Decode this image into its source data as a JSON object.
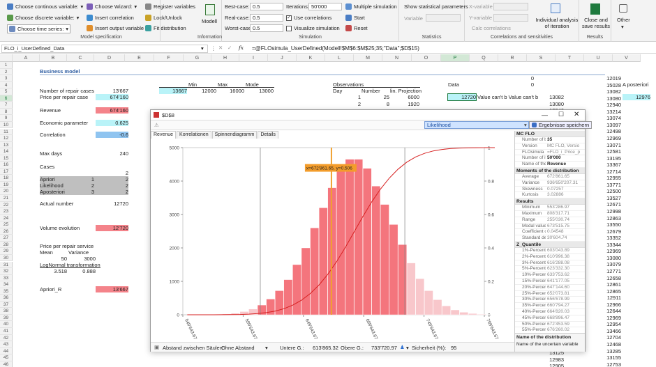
{
  "ribbon": {
    "model_spec": {
      "continuous": "Choose continous variable:",
      "discrete": "Choose discrete variable:",
      "time_series": "Choose time series:",
      "wizard": "Choose Wizard:",
      "insert_corr": "Insert correlation",
      "insert_output": "Insert output variable",
      "register": "Register variables",
      "lock": "Lock/Unlock",
      "fit": "Fit distribution",
      "label": "Model specification"
    },
    "information": {
      "model": "Modell",
      "label": "Information"
    },
    "simulation": {
      "best_case": "Best-case:",
      "best_val": "0.5",
      "real_case": "Real-case:",
      "real_val": "0.5",
      "worst_case": "Worst-case:",
      "worst_val": "0.5",
      "iterations": "Iterations:",
      "iter_val": "50'000",
      "use_corr": "Use correlations",
      "visualize": "Visualize simulation",
      "multiple": "Multiple simulation",
      "start": "Start",
      "reset": "Reset",
      "label": "Simulation"
    },
    "statistics": {
      "show_params": "Show statistical parameters",
      "variable": "Variable",
      "label": "Statistics"
    },
    "corr_sens": {
      "x_var": "X-variable",
      "y_var": "Y-variable",
      "calc": "Calc correlations",
      "individual": "Individual analysis of iteration",
      "label": "Correlations and sensitivities"
    },
    "results": {
      "close_save": "Close and save results",
      "label": "Results"
    },
    "other": {
      "label": "Other"
    }
  },
  "formula": {
    "name_box": "FLO_i_UserDefined_Data",
    "formula": "=@FLOsimula_UserDefined(Modell!$M$6:$M$25;35;\"Data\";$D$15)"
  },
  "columns": [
    "A",
    "B",
    "C",
    "D",
    "E",
    "F",
    "G",
    "H",
    "I",
    "J",
    "K",
    "L",
    "M",
    "N",
    "O",
    "P",
    "Q",
    "R",
    "S",
    "T",
    "U",
    "V"
  ],
  "rows": [
    "1",
    "2",
    "3",
    "4",
    "5",
    "6",
    "7",
    "8",
    "9",
    "10",
    "11",
    "12",
    "13",
    "14",
    "15",
    "16",
    "17",
    "18",
    "19",
    "20",
    "21",
    "22",
    "23",
    "24",
    "25",
    "26",
    "27",
    "28",
    "29",
    "30",
    "31",
    "32",
    "33",
    "34",
    "35",
    "36",
    "37",
    "38",
    "39",
    "40",
    "41",
    "42",
    "43",
    "44",
    "45",
    "46"
  ],
  "sheet": {
    "business_model": "Business model",
    "repair_cases": "Number of repair cases",
    "repair_val": "13'667",
    "price": "Price per repair case",
    "price_val": "674'160",
    "revenue": "Revenue",
    "revenue_val": "674'160",
    "economic": "Economic parameter",
    "economic_val": "0.625",
    "correlation": "Correlation",
    "correlation_val": "-0.6",
    "max_days": "Max days",
    "max_days_val": "240",
    "cases": "Cases",
    "cases_num": "2",
    "apriori": "Apriori",
    "apriori_a": "1",
    "apriori_b": "2",
    "likelihood": "Likelihood",
    "likelihood_a": "2",
    "likelihood_b": "2",
    "aposteriori": "Aposteriori",
    "aposteriori_a": "3",
    "aposteriori_b": "2",
    "actual": "Actual number",
    "actual_val": "12720",
    "volume": "Volume evolution",
    "volume_val": "12'720",
    "price_service": "Price per repair service",
    "mean": "Mean",
    "variance": "Variance",
    "mean_val": "50",
    "var_val": "3000",
    "lognormal": "LogNormal transformation",
    "ln_a": "3.518",
    "ln_b": "0.888",
    "apriori_r": "Apriori_R",
    "apriori_r_val": "13'667",
    "min": "Min",
    "max": "Max",
    "mode": "Mode",
    "f5": "13667",
    "g5": "12000",
    "h5": "16000",
    "i5": "13000",
    "observations": "Observations",
    "day": "Day",
    "number": "Number",
    "lin_proj": "lin. Projection",
    "obs": [
      [
        "1",
        "25",
        "6000"
      ],
      [
        "2",
        "8",
        "1920"
      ]
    ],
    "data": "Data",
    "o3": "0",
    "o4": "0",
    "p6": "12720",
    "value_msg": "Value can't b Value can't b",
    "s_col": [
      "13082",
      "13080",
      "12940",
      "13214",
      "13074",
      "13097",
      "12498",
      "12969",
      "13071",
      "12581",
      "13195",
      "13367",
      "12714"
    ],
    "u_col": [
      "12019",
      "15028",
      "13082",
      "13080",
      "12940",
      "13214",
      "13074",
      "13097",
      "12498",
      "12969",
      "13071",
      "12581",
      "13195",
      "13367",
      "12714",
      "12955",
      "13771",
      "12500",
      "13527",
      "12671",
      "12998",
      "12863",
      "13550",
      "12679",
      "13352",
      "13344",
      "12969",
      "13080",
      "13079",
      "12771",
      "12658",
      "12861",
      "12865",
      "12911",
      "12966",
      "12644",
      "12969",
      "12954",
      "13466",
      "12704",
      "12468",
      "13285",
      "13155",
      "12753",
      "13125",
      "12983"
    ],
    "v4": "A posteriori",
    "v6": "12976",
    "s_bottom": [
      "13155",
      "12753",
      "13125",
      "12983",
      "12905"
    ]
  },
  "dialog": {
    "title": "$D$8",
    "likelihood_field": "Likelihood",
    "save_btn": "Ergebnisse speichern",
    "tabs": [
      "Revenue",
      "Korrelationen",
      "Spinnendiagramm",
      "Details"
    ],
    "tooltip": "x=672'861.65, y=0.506",
    "bottom": {
      "gap_label": "Abstand zwischen Säulen:",
      "gap_val": "Ohne Abstand",
      "lower": "Untere G.:",
      "lower_val": "613'865.32",
      "upper": "Obere G.:",
      "upper_val": "733'720.97",
      "safety": "Sicherheit (%):",
      "safety_val": "95"
    },
    "sections": [
      {
        "title": "MC FLO",
        "rows": [
          [
            "Number of b",
            "35"
          ],
          [
            "Version",
            "MC FLO, Versio"
          ],
          [
            "FLOsimula",
            "=FLO_i_Price_p"
          ],
          [
            "Number of it",
            "50'000"
          ],
          [
            "Name of the",
            "Revenue"
          ]
        ]
      },
      {
        "title": "Moments of the distribution",
        "rows": [
          [
            "Average",
            "672'861.65"
          ],
          [
            "Variance",
            "936'650'207.31"
          ],
          [
            "Skewness",
            "0.07257"
          ],
          [
            "Kurtosis",
            "3.02886"
          ]
        ]
      },
      {
        "title": "Results",
        "rows": [
          [
            "Minimum",
            "553'286.97"
          ],
          [
            "Maximum",
            "808'317.71"
          ],
          [
            "Range",
            "255'030.74"
          ],
          [
            "Modal value",
            "673'515.75"
          ],
          [
            "Coefficient of",
            "0.04548"
          ],
          [
            "Standard dev",
            "30'604.74"
          ]
        ]
      },
      {
        "title": "Z_Quantile",
        "rows": [
          [
            "1%-Percentil",
            "603'043.89"
          ],
          [
            "2%-Percentil",
            "610'996.38"
          ],
          [
            "3%-Percentil",
            "616'288.08"
          ],
          [
            "5%-Percentil",
            "623'332.30"
          ],
          [
            "10%-Percent",
            "633'753.62"
          ],
          [
            "15%-Percent",
            "641'177.05"
          ],
          [
            "20%-Percent",
            "647'144.60"
          ],
          [
            "25%-Percent",
            "652'073.81"
          ],
          [
            "30%-Percent",
            "656'678.99"
          ],
          [
            "35%-Percent",
            "660'794.27"
          ],
          [
            "40%-Percent",
            "664'820.03"
          ],
          [
            "45%-Percent",
            "668'896.47"
          ],
          [
            "50%-Percent",
            "672'453.59"
          ],
          [
            "55%-Percent",
            "676'260.02"
          ],
          [
            "60%-Percent",
            "680'143.66"
          ]
        ]
      }
    ],
    "desc_title": "Name of the distribution",
    "desc_text": "Name of the uncertain variable"
  },
  "chart_data": {
    "type": "bar",
    "title": "",
    "x_ticks": [
      "549'643.67",
      "599'643.67",
      "649'643.67",
      "699'643.67",
      "749'643.67",
      "799'643.67"
    ],
    "x_range": [
      549643.67,
      799643.67
    ],
    "y_left": {
      "min": 0,
      "max": 5000,
      "ticks": [
        "0",
        "1000",
        "2000",
        "3000",
        "4000",
        "5000"
      ]
    },
    "y_right": {
      "min": 0,
      "max": 1,
      "ticks": [
        "0",
        "0.2",
        "0.4",
        "0.6",
        "0.8",
        "1"
      ]
    },
    "bin_width": 7286.6,
    "bins": [
      553287,
      560574,
      567860,
      575147,
      582434,
      589720,
      597007,
      604294,
      611580,
      618867,
      626153,
      633440,
      640727,
      648013,
      655300,
      662587,
      669873,
      677160,
      684446,
      691733,
      699020,
      706306,
      713593,
      720880,
      728166,
      735453,
      742740,
      750026,
      757313,
      764600,
      771886,
      779173,
      786460,
      793746,
      801033
    ],
    "values": [
      1,
      2,
      4,
      10,
      22,
      46,
      95,
      170,
      290,
      470,
      720,
      1050,
      1500,
      2000,
      2600,
      3200,
      3800,
      4300,
      4650,
      4650,
      4380,
      3850,
      3300,
      2700,
      2100,
      1550,
      1080,
      720,
      450,
      265,
      145,
      75,
      36,
      16,
      7
    ],
    "highlight_range": [
      613865.32,
      733720.97
    ],
    "cdf": true,
    "marker_x": 672861.65,
    "marker_y": 0.506,
    "colors": {
      "inside": "#f4757d",
      "outside": "#f8c7cb",
      "cdf": "#d62020",
      "marker": "#f0a030",
      "tooltip": "#f39c2b"
    }
  }
}
